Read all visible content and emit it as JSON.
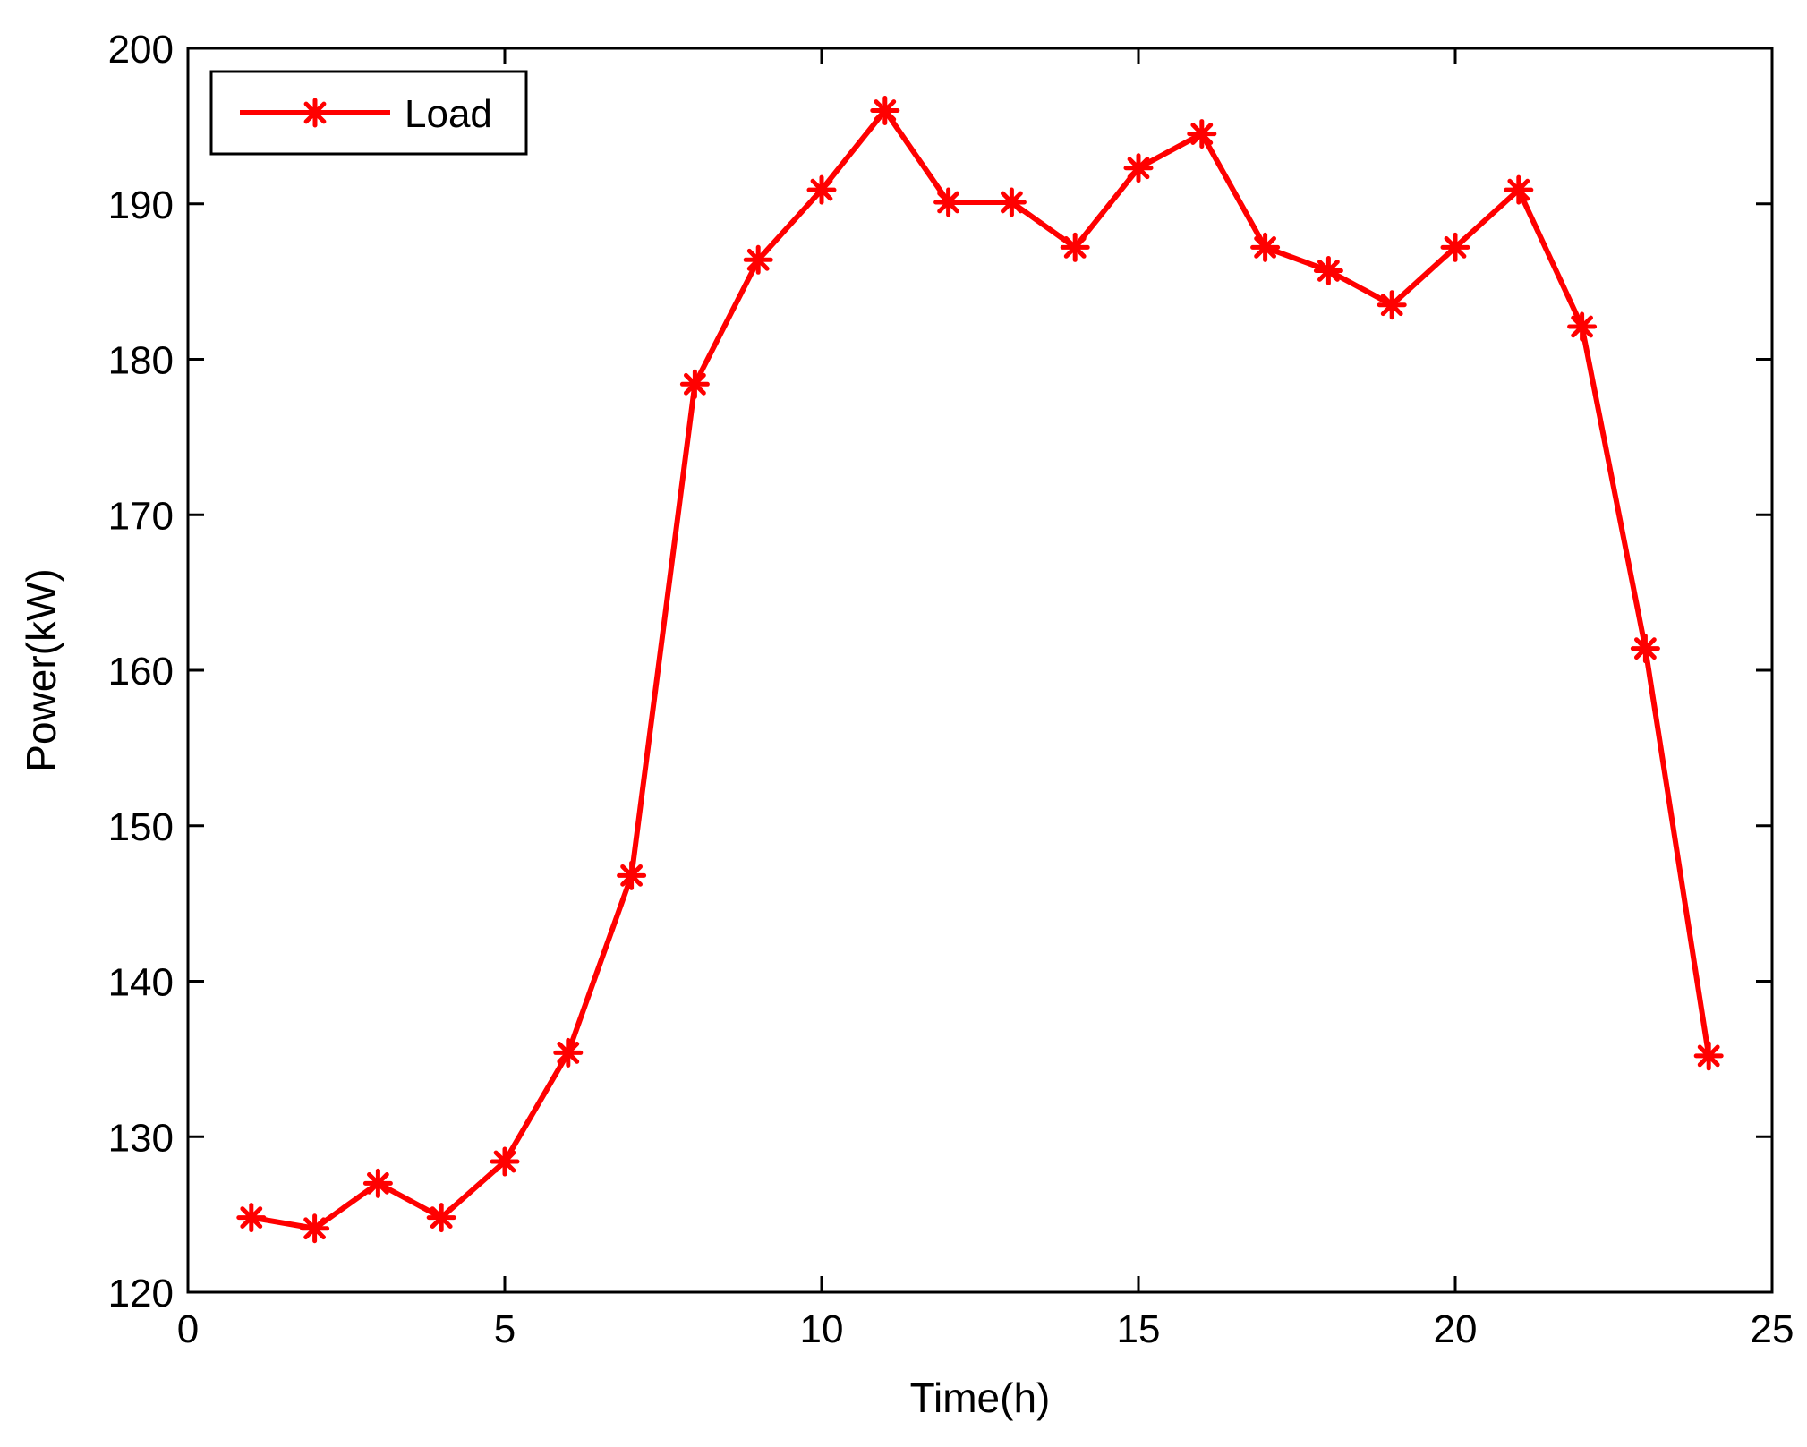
{
  "chart_data": {
    "type": "line",
    "xlabel": "Time(h)",
    "ylabel": "Power(kW)",
    "xlim": [
      0,
      25
    ],
    "ylim": [
      120,
      200
    ],
    "xticks": [
      0,
      5,
      10,
      15,
      20,
      25
    ],
    "yticks": [
      120,
      130,
      140,
      150,
      160,
      170,
      180,
      190,
      200
    ],
    "grid": false,
    "legend_position": "top-left",
    "series": [
      {
        "name": "Load",
        "color": "#ff0000",
        "marker": "asterisk",
        "x": [
          1,
          2,
          3,
          4,
          5,
          6,
          7,
          8,
          9,
          10,
          11,
          12,
          13,
          14,
          15,
          16,
          17,
          18,
          19,
          20,
          21,
          22,
          23,
          24
        ],
        "y": [
          124.8,
          124.1,
          127.0,
          124.8,
          128.4,
          135.4,
          146.8,
          178.4,
          186.4,
          190.9,
          196.0,
          190.1,
          190.1,
          187.2,
          192.3,
          194.5,
          187.2,
          185.7,
          183.5,
          187.2,
          190.9,
          182.1,
          161.4,
          135.2
        ]
      }
    ]
  }
}
